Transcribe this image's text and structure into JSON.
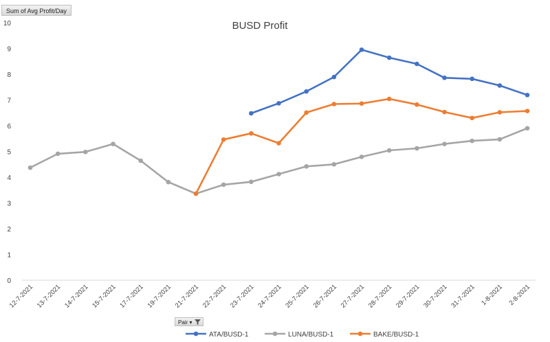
{
  "field_button": {
    "label": "Sum of Avg Profit/Day"
  },
  "pair_filter": {
    "label": "Pair",
    "dropdown_glyph": "▾"
  },
  "chart_data": {
    "type": "line",
    "title": "BUSD Profit",
    "xlabel": "",
    "ylabel": "",
    "ylim": [
      0,
      10
    ],
    "yticks": [
      0,
      1,
      2,
      3,
      4,
      5,
      6,
      7,
      8,
      9,
      10
    ],
    "grid": false,
    "legend_position": "bottom",
    "categories": [
      "12-7-2021",
      "13-7-2021",
      "14-7-2021",
      "15-7-2021",
      "17-7-2021",
      "19-7-2021",
      "21-7-2021",
      "22-7-2021",
      "23-7-2021",
      "24-7-2021",
      "25-7-2021",
      "26-7-2021",
      "27-7-2021",
      "28-7-2021",
      "29-7-2021",
      "30-7-2021",
      "31-7-2021",
      "1-8-2021",
      "2-8-2021"
    ],
    "series": [
      {
        "name": "ATA/BUSD-1",
        "color": "#4472c4",
        "values": [
          null,
          null,
          null,
          null,
          null,
          null,
          null,
          null,
          6.48,
          6.87,
          7.33,
          7.89,
          8.95,
          8.64,
          8.4,
          7.86,
          7.82,
          7.56,
          7.19
        ]
      },
      {
        "name": "LUNA/BUSD-1",
        "color": "#a5a5a5",
        "values": [
          4.37,
          4.91,
          4.98,
          5.29,
          4.64,
          3.81,
          3.36,
          3.71,
          3.82,
          4.12,
          4.42,
          4.5,
          4.79,
          5.04,
          5.12,
          5.29,
          5.41,
          5.47,
          5.9
        ]
      },
      {
        "name": "BAKE/BUSD-1",
        "color": "#ed7d31",
        "values": [
          null,
          null,
          null,
          null,
          null,
          null,
          3.36,
          5.46,
          5.7,
          5.32,
          6.51,
          6.84,
          6.86,
          7.04,
          6.82,
          6.53,
          6.3,
          6.52,
          6.57
        ]
      }
    ]
  }
}
